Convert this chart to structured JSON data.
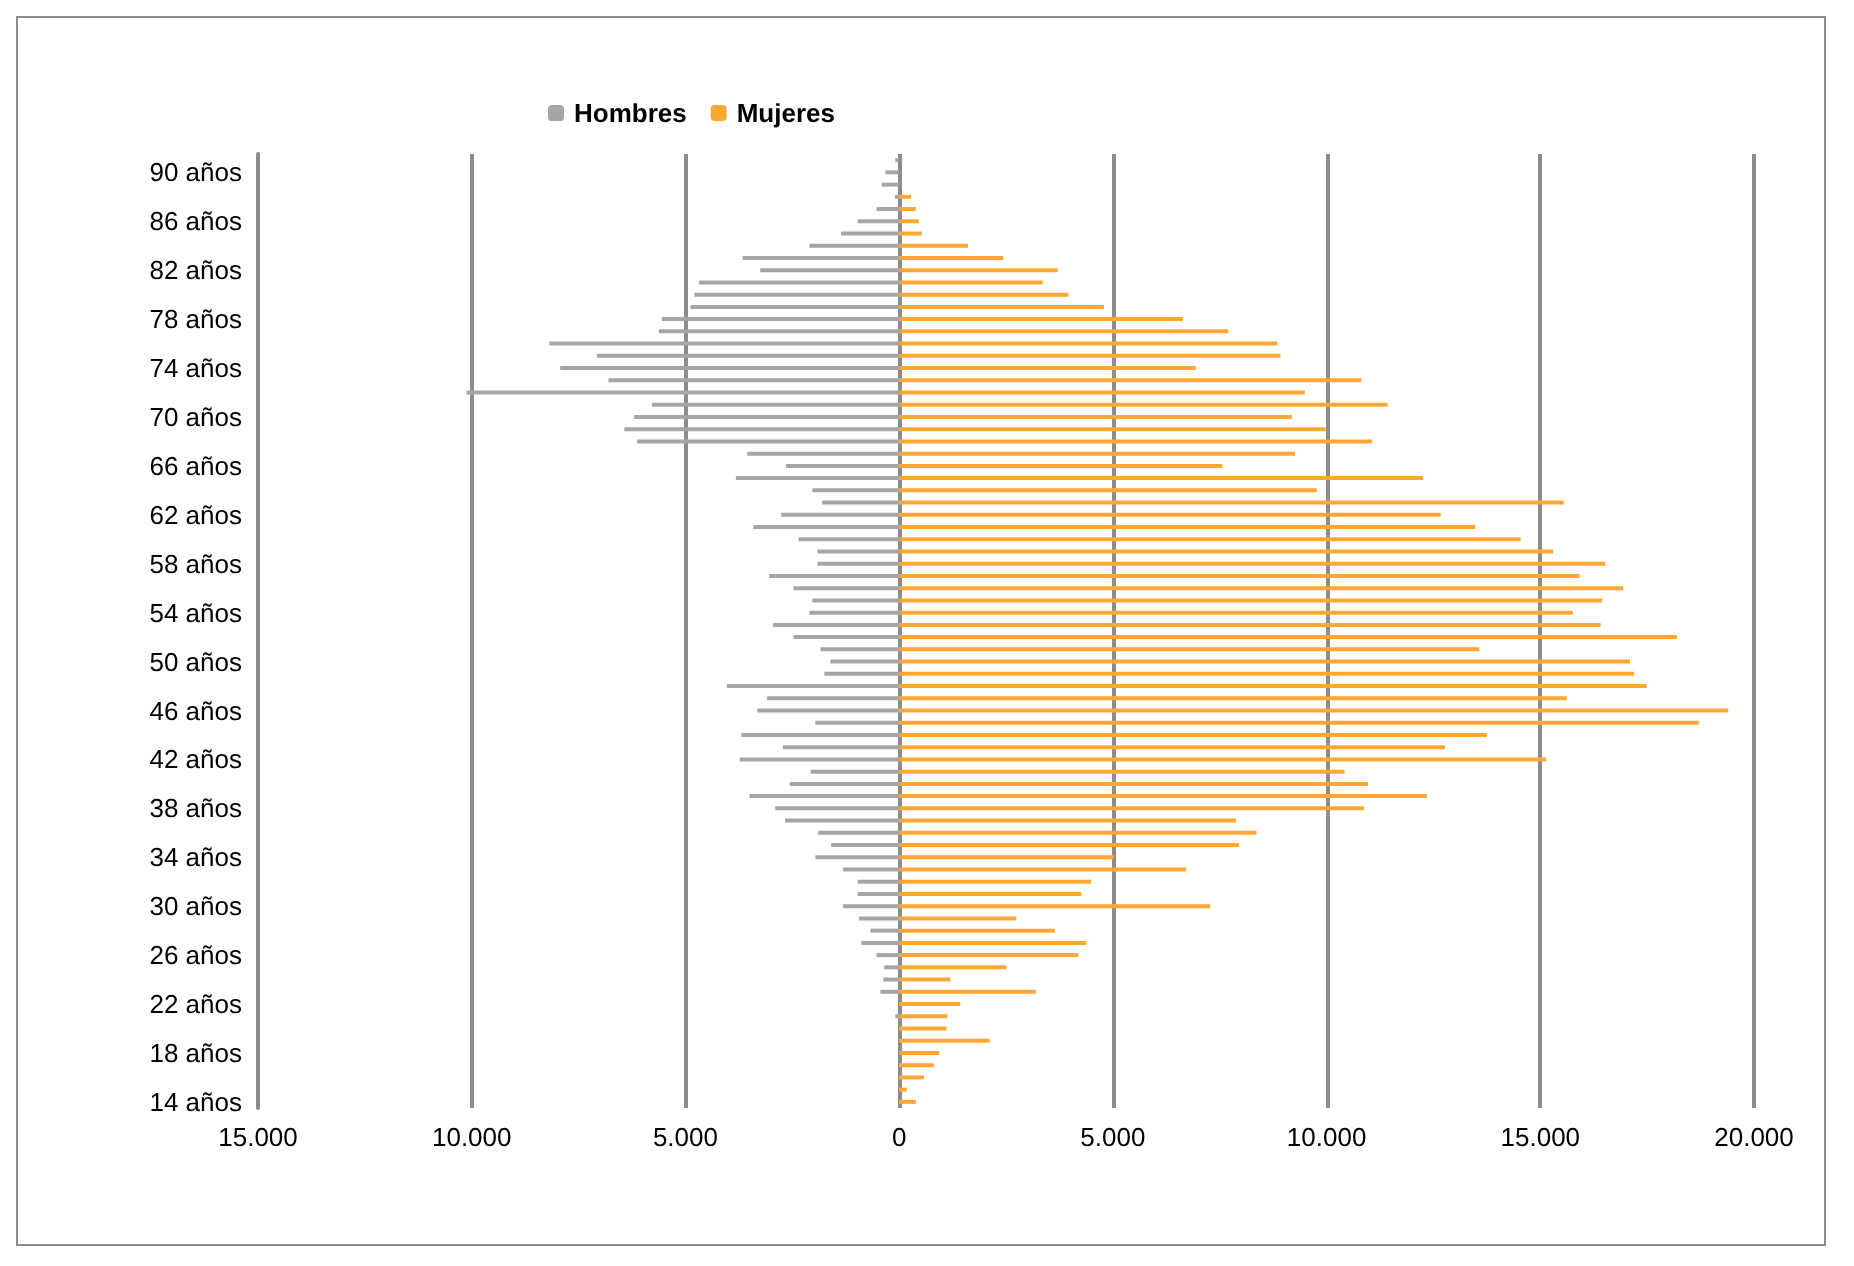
{
  "chart_data": {
    "type": "bar",
    "orientation": "horizontal",
    "categories": [
      null,
      "90 años",
      null,
      null,
      null,
      "86 años",
      null,
      null,
      null,
      "82 años",
      null,
      null,
      null,
      "78 años",
      null,
      null,
      null,
      "74 años",
      null,
      null,
      null,
      "70 años",
      null,
      null,
      null,
      "66 años",
      null,
      null,
      null,
      "62 años",
      null,
      null,
      null,
      "58 años",
      null,
      null,
      null,
      "54 años",
      null,
      null,
      null,
      "50 años",
      null,
      null,
      null,
      "46 años",
      null,
      null,
      null,
      "42 años",
      null,
      null,
      null,
      "38 años",
      null,
      null,
      null,
      "34 años",
      null,
      null,
      null,
      "30 años",
      null,
      null,
      null,
      "26 años",
      null,
      null,
      null,
      "22 años",
      null,
      null,
      null,
      "18 años",
      null,
      null,
      null,
      "14 años"
    ],
    "series": [
      {
        "name": "Hombres",
        "color": "#a5a5a5",
        "values": [
          -90,
          -320,
          -410,
          -100,
          -530,
          -970,
          -1360,
          -2100,
          -3660,
          -3250,
          -4680,
          -4790,
          -4880,
          -5550,
          -5620,
          -8180,
          -7070,
          -7930,
          -6800,
          -10120,
          -5780,
          -6200,
          -6430,
          -6130,
          -3550,
          -2650,
          -3820,
          -2030,
          -1800,
          -2760,
          -3410,
          -2350,
          -1910,
          -1910,
          -3040,
          -2470,
          -2030,
          -2100,
          -2950,
          -2470,
          -1840,
          -1610,
          -1750,
          -4030,
          -3090,
          -3320,
          -1960,
          -3690,
          -2720,
          -3730,
          -2070,
          -2560,
          -3500,
          -2900,
          -2670,
          -1890,
          -1590,
          -1960,
          -1310,
          -970,
          -970,
          -1310,
          -940,
          -670,
          -880,
          -530,
          -350,
          -370,
          -440,
          0,
          -90,
          0,
          0,
          0,
          0,
          0,
          0,
          0
        ]
      },
      {
        "name": "Mujeres",
        "color": "#ffa733",
        "values": [
          0,
          0,
          0,
          280,
          390,
          460,
          530,
          1610,
          2440,
          3710,
          3360,
          3960,
          4790,
          6640,
          7700,
          8850,
          8920,
          6940,
          10810,
          9490,
          11430,
          9190,
          9980,
          11060,
          9260,
          7560,
          12260,
          9770,
          15550,
          12670,
          13480,
          14540,
          15300,
          16520,
          15920,
          16940,
          16450,
          15760,
          16410,
          18200,
          13570,
          17100,
          17190,
          17490,
          15620,
          19400,
          18710,
          13750,
          12770,
          15140,
          10420,
          10970,
          12350,
          10880,
          7880,
          8360,
          7950,
          5020,
          6710,
          4490,
          4260,
          7280,
          2740,
          3640,
          4380,
          4190,
          2510,
          1200,
          3200,
          1430,
          1130,
          1110,
          2120,
          940,
          810,
          580,
          180,
          390
        ]
      }
    ],
    "xlim": [
      -15000,
      20000
    ],
    "xticks": [
      {
        "value": -15000,
        "label": "15.000"
      },
      {
        "value": -10000,
        "label": "10.000"
      },
      {
        "value": -5000,
        "label": "5.000"
      },
      0,
      {
        "value": 5000,
        "label": "5.000"
      },
      {
        "value": 10000,
        "label": "10.000"
      },
      {
        "value": 15000,
        "label": "15.000"
      },
      {
        "value": 20000,
        "label": "20.000"
      }
    ],
    "grid": "x",
    "legend": "top"
  }
}
